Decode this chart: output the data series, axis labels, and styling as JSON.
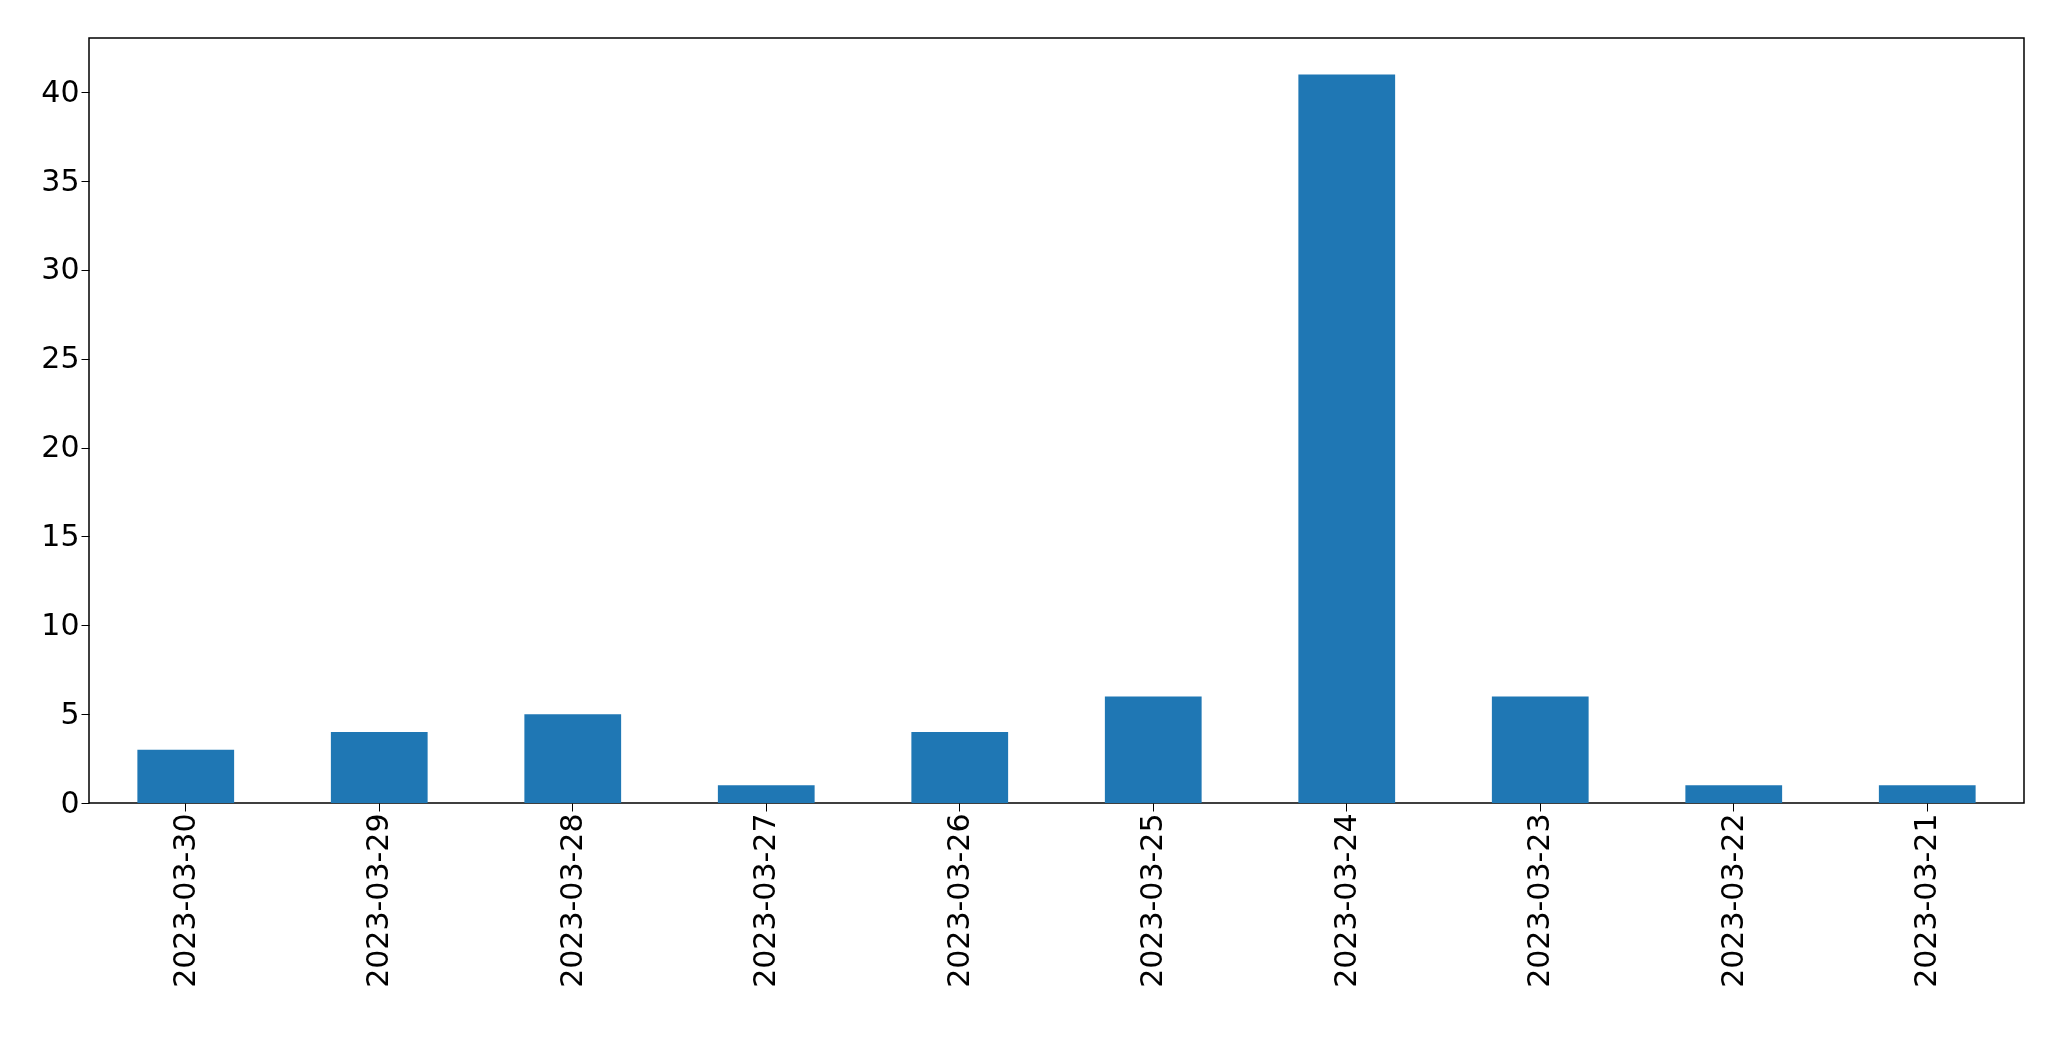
{
  "chart_data": {
    "type": "bar",
    "categories": [
      "2023-03-30",
      "2023-03-29",
      "2023-03-28",
      "2023-03-27",
      "2023-03-26",
      "2023-03-25",
      "2023-03-24",
      "2023-03-23",
      "2023-03-22",
      "2023-03-21"
    ],
    "values": [
      3,
      4,
      5,
      1,
      4,
      6,
      41,
      6,
      1,
      1
    ],
    "color": "#1f77b4",
    "ylim": [
      0,
      43.05
    ],
    "yticks": [
      0,
      5,
      10,
      15,
      20,
      25,
      30,
      35,
      40
    ],
    "grid": false
  }
}
